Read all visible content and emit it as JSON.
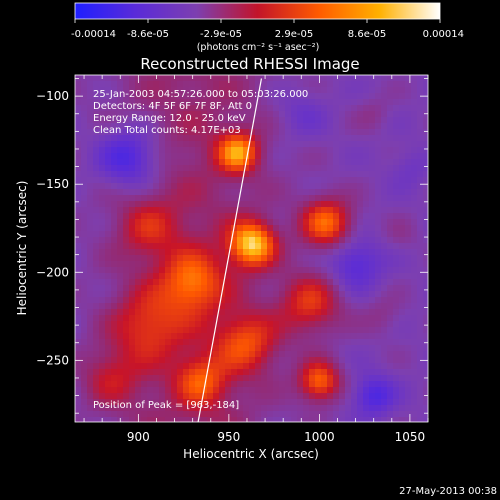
{
  "colorbar": {
    "ticks": [
      "-0.00014",
      "-8.6e-05",
      "-2.9e-05",
      "2.9e-05",
      "8.6e-05",
      "0.00014"
    ],
    "unit_label": "(photons cm⁻² s⁻¹ asec⁻²)",
    "colors": [
      "#1f1fff",
      "#5a2bd8",
      "#7d3fb0",
      "#c2142a",
      "#ff5a00",
      "#ffb000",
      "#ffffff"
    ]
  },
  "image": {
    "title": "Reconstructed RHESSI Image",
    "annotations": [
      "25-Jan-2003 04:57:26.000 to 05:03:26.000",
      "Detectors: 4F 5F 6F 7F 8F, Att 0",
      "Energy Range: 12.0 - 25.0 keV",
      "Clean     Total counts: 4.17E+03"
    ],
    "peak_label": "Position of Peak = [963,-184]",
    "footer_date": "27-May-2013 00:38"
  },
  "chart_data": {
    "type": "heatmap",
    "xlabel": "Heliocentric X (arcsec)",
    "ylabel": "Heliocentric Y (arcsec)",
    "xlim": [
      865,
      1060
    ],
    "ylim": [
      -285,
      -88
    ],
    "xticks": [
      900,
      950,
      1000,
      1050
    ],
    "yticks": [
      -100,
      -150,
      -200,
      -250
    ],
    "peak": [
      963,
      -184
    ],
    "blobs": [
      {
        "x": 963,
        "y": -184,
        "v": 1.0,
        "r": 9
      },
      {
        "x": 955,
        "y": -132,
        "v": 0.8,
        "r": 8
      },
      {
        "x": 1004,
        "y": -172,
        "v": 0.75,
        "r": 10
      },
      {
        "x": 930,
        "y": -206,
        "v": 0.6,
        "r": 12
      },
      {
        "x": 995,
        "y": -218,
        "v": 0.55,
        "r": 12
      },
      {
        "x": 905,
        "y": -230,
        "v": 0.45,
        "r": 14
      },
      {
        "x": 960,
        "y": -240,
        "v": 0.55,
        "r": 12
      },
      {
        "x": 1000,
        "y": -262,
        "v": 0.75,
        "r": 8
      },
      {
        "x": 935,
        "y": -262,
        "v": 0.5,
        "r": 10
      },
      {
        "x": 905,
        "y": -175,
        "v": 0.35,
        "r": 12
      },
      {
        "x": 885,
        "y": -260,
        "v": 0.35,
        "r": 12
      },
      {
        "x": 1035,
        "y": -225,
        "v": 0.15,
        "r": 8
      },
      {
        "x": 1030,
        "y": -110,
        "v": 0.12,
        "r": 7
      },
      {
        "x": 1045,
        "y": -180,
        "v": 0.1,
        "r": 7
      },
      {
        "x": 895,
        "y": -135,
        "v": -0.55,
        "r": 12
      },
      {
        "x": 1020,
        "y": -195,
        "v": -0.4,
        "r": 10
      },
      {
        "x": 1030,
        "y": -270,
        "v": -0.45,
        "r": 8
      },
      {
        "x": 990,
        "y": -110,
        "v": -0.2,
        "r": 10
      },
      {
        "x": 1050,
        "y": -140,
        "v": -0.15,
        "r": 8
      }
    ],
    "limb_line": [
      [
        933,
        -285
      ],
      [
        968,
        -90
      ]
    ]
  }
}
